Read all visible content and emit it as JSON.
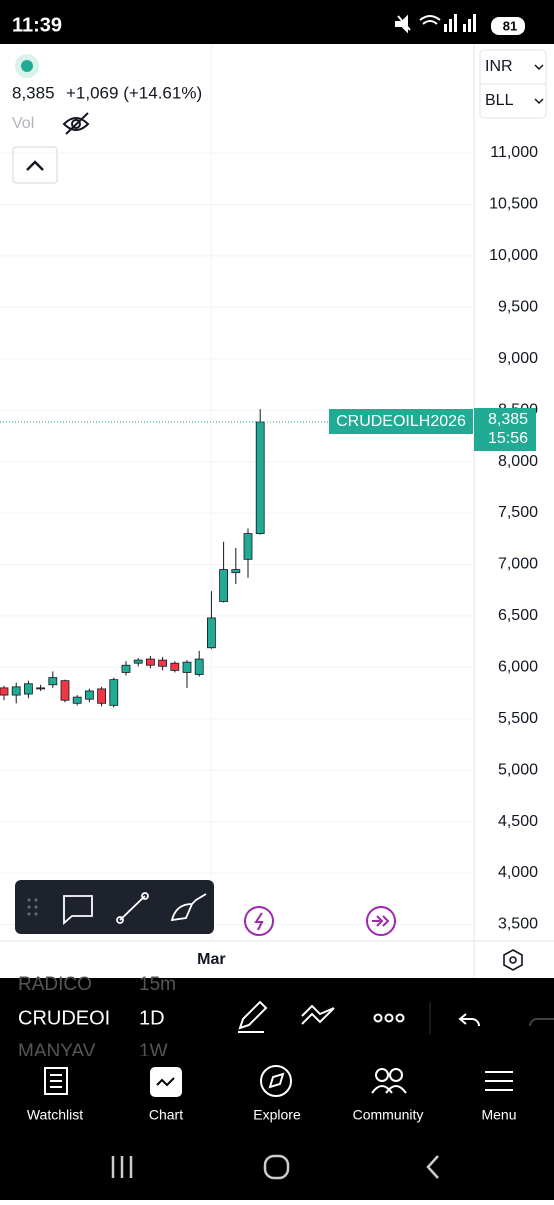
{
  "status_bar": {
    "time": "11:39",
    "battery": "81"
  },
  "header": {
    "price": "8,385",
    "change": "+1,069 (+14.61%)",
    "volume_label": "Vol"
  },
  "currency": {
    "currency": "INR",
    "exchange": "BLL"
  },
  "chart_data": {
    "type": "candlestick",
    "categories": [
      null,
      null,
      null,
      null,
      null,
      null,
      null,
      null,
      null,
      null,
      null,
      null,
      null,
      null,
      null,
      null,
      null,
      "Mar",
      null,
      null,
      null,
      null
    ],
    "open": [
      5800,
      5730,
      5740,
      5800,
      5830,
      5870,
      5650,
      5690,
      5790,
      5630,
      5950,
      6040,
      6080,
      6070,
      6040,
      5950,
      5930,
      6190,
      6640,
      6920,
      7050,
      7300
    ],
    "high": [
      5820,
      5850,
      5870,
      5830,
      5960,
      5880,
      5730,
      5790,
      5810,
      5900,
      6060,
      6090,
      6110,
      6100,
      6060,
      6070,
      6160,
      6740,
      7220,
      7160,
      7350,
      8510
    ],
    "low": [
      5680,
      5650,
      5700,
      5770,
      5800,
      5660,
      5630,
      5660,
      5620,
      5610,
      5920,
      6010,
      5990,
      5970,
      5950,
      5800,
      5910,
      6180,
      6630,
      6810,
      6870,
      7290
    ],
    "close": [
      5730,
      5810,
      5840,
      5790,
      5900,
      5680,
      5710,
      5770,
      5650,
      5880,
      6020,
      6070,
      6020,
      6010,
      5970,
      6050,
      6080,
      6480,
      6950,
      6950,
      7300,
      8385
    ],
    "up_color": "#22ab94",
    "down_color": "#f23645",
    "ylim": [
      3339,
      12060
    ],
    "yticks": [
      {
        "value": 3500,
        "label": "3,500"
      },
      {
        "value": 4000,
        "label": "4,000"
      },
      {
        "value": 4500,
        "label": "4,500"
      },
      {
        "value": 5000,
        "label": "5,000"
      },
      {
        "value": 5500,
        "label": "5,500"
      },
      {
        "value": 6000,
        "label": "6,000"
      },
      {
        "value": 6500,
        "label": "6,500"
      },
      {
        "value": 7000,
        "label": "7,000"
      },
      {
        "value": 7500,
        "label": "7,500"
      },
      {
        "value": 8000,
        "label": "8,000"
      },
      {
        "value": 8500,
        "label": "8,500"
      },
      {
        "value": 9000,
        "label": "9,000"
      },
      {
        "value": 9500,
        "label": "9,500"
      },
      {
        "value": 10000,
        "label": "10,000"
      },
      {
        "value": 10500,
        "label": "10,500"
      },
      {
        "value": 11000,
        "label": "11,000"
      }
    ],
    "grid": true,
    "last_price": {
      "symbol": "CRUDEOILH2026",
      "value": 8385,
      "label": "8,385",
      "time": "15:56"
    }
  },
  "symbol_bar": {
    "rows": [
      {
        "symbol": "RADICO",
        "interval": "15m"
      },
      {
        "symbol": "CRUDEOI",
        "interval": "1D"
      },
      {
        "symbol": "MANYAV",
        "interval": "1W"
      }
    ]
  },
  "nav": {
    "items": [
      "Watchlist",
      "Chart",
      "Explore",
      "Community",
      "Menu"
    ]
  }
}
